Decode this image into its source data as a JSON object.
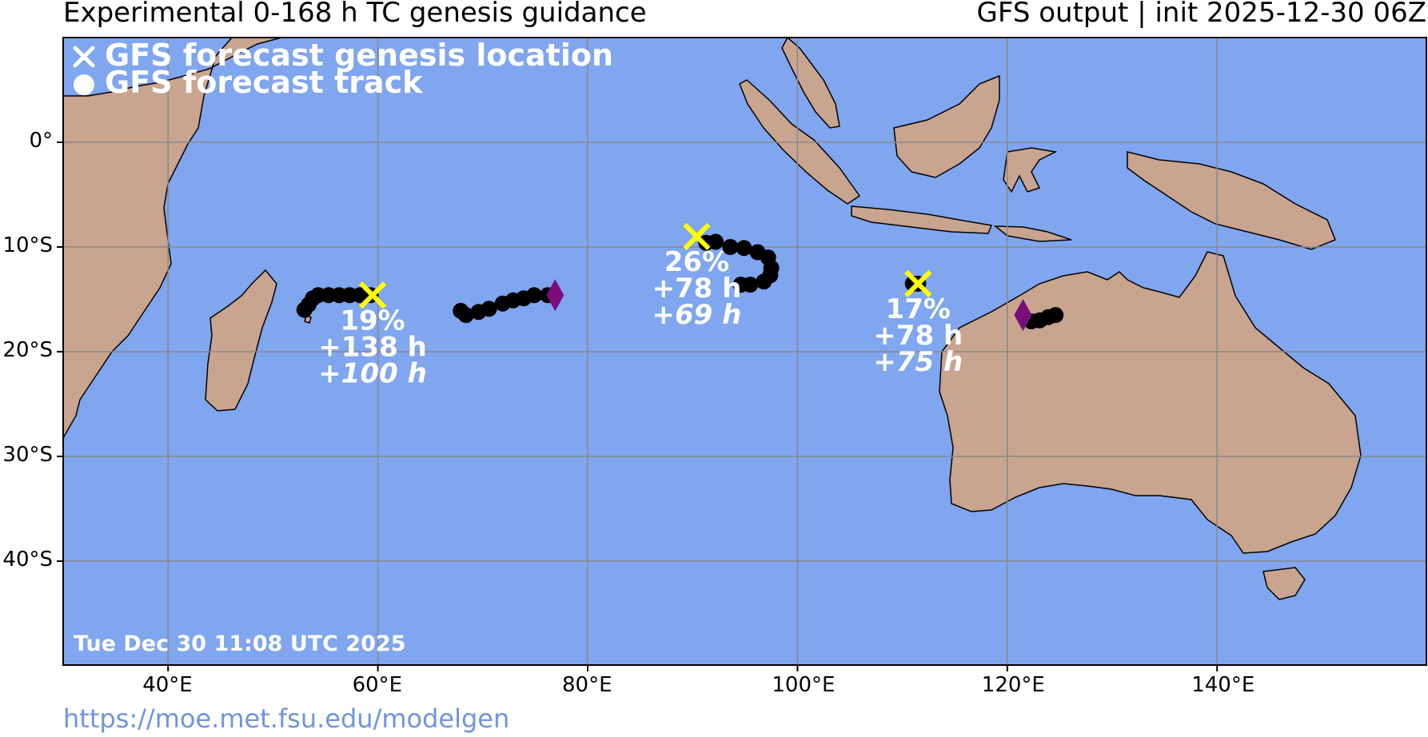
{
  "header": {
    "title_left": "Experimental 0-168 h TC genesis guidance",
    "title_right": "GFS output | init 2025-12-30 06Z"
  },
  "legend": {
    "genesis_label": "GFS forecast genesis location",
    "track_label": "GFS forecast track"
  },
  "timestamp": "Tue Dec 30 11:08 UTC 2025",
  "footer_url": "https://moe.met.fsu.edu/modelgen",
  "axes": {
    "lon_labels": [
      "40°E",
      "60°E",
      "80°E",
      "100°E",
      "120°E",
      "140°E"
    ],
    "lat_labels": [
      "0°",
      "10°S",
      "20°S",
      "30°S",
      "40°S"
    ]
  },
  "colors": {
    "ocean": "#7fa6ef",
    "land": "#c9a48f",
    "track": "#000000",
    "genesis_marker": "#ffff00",
    "diamond": "#7a0d7a",
    "label_text": "#ffffff"
  },
  "systems": [
    {
      "probability": "19%",
      "genesis_time": "+138 h",
      "secondary_time_prefix": "+",
      "secondary_time": "100 h",
      "genesis": {
        "lon": 59.5,
        "lat": -14.6
      },
      "track": [
        [
          53.0,
          -16.0
        ],
        [
          53.4,
          -15.5
        ],
        [
          53.8,
          -14.9
        ],
        [
          54.3,
          -14.6
        ],
        [
          55.3,
          -14.6
        ],
        [
          56.3,
          -14.6
        ],
        [
          57.3,
          -14.6
        ],
        [
          58.3,
          -14.6
        ],
        [
          59.3,
          -14.6
        ]
      ]
    },
    {
      "probability": "26%",
      "genesis_time": "+78 h",
      "secondary_time_prefix": "+",
      "secondary_time": "69 h",
      "genesis": {
        "lon": 90.4,
        "lat": -9.0
      },
      "track": [
        [
          91.3,
          -9.6
        ],
        [
          92.2,
          -9.5
        ],
        [
          93.6,
          -10.0
        ],
        [
          94.9,
          -10.1
        ],
        [
          96.2,
          -10.5
        ],
        [
          97.2,
          -11.0
        ],
        [
          97.5,
          -12.0
        ],
        [
          97.4,
          -12.7
        ],
        [
          96.8,
          -13.3
        ],
        [
          95.5,
          -13.6
        ],
        [
          94.6,
          -13.6
        ]
      ],
      "diamond": {
        "lon": 76.9,
        "lat": -14.6
      },
      "extra_track": [
        [
          67.9,
          -16.1
        ],
        [
          68.4,
          -16.5
        ],
        [
          69.6,
          -16.2
        ],
        [
          70.6,
          -15.9
        ],
        [
          71.9,
          -15.4
        ],
        [
          72.9,
          -15.1
        ],
        [
          73.9,
          -14.9
        ],
        [
          74.9,
          -14.6
        ],
        [
          76.2,
          -14.6
        ]
      ]
    },
    {
      "probability": "17%",
      "genesis_time": "+78 h",
      "secondary_time_prefix": "+",
      "secondary_time": "75 h",
      "genesis": {
        "lon": 111.5,
        "lat": -13.5
      },
      "track": [
        [
          111.0,
          -13.5
        ],
        [
          111.5,
          -13.5
        ]
      ],
      "diamond": {
        "lon": 121.5,
        "lat": -16.5
      },
      "extra_track": [
        [
          122.3,
          -17.1
        ],
        [
          123.1,
          -17.0
        ],
        [
          123.9,
          -16.7
        ],
        [
          124.6,
          -16.5
        ]
      ]
    }
  ]
}
